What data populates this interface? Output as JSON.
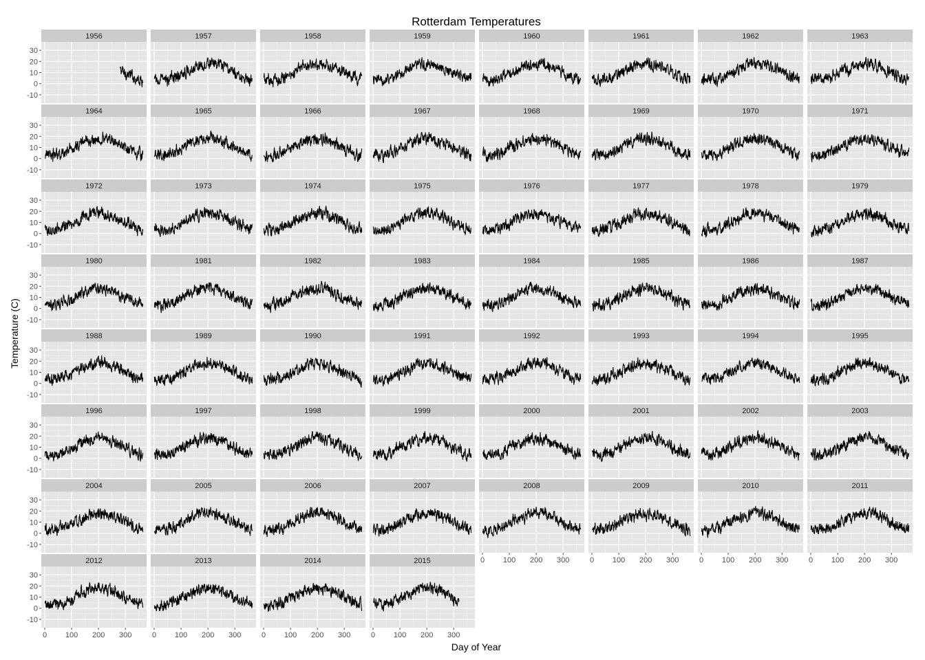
{
  "chart_data": {
    "type": "line",
    "layout": "faceted small multiples",
    "title": "Rotterdam Temperatures",
    "xlabel": "Day of Year",
    "ylabel": "Temperature (C)",
    "xlim": [
      0,
      366
    ],
    "ylim": [
      -15,
      35
    ],
    "x_ticks": [
      0,
      100,
      200,
      300
    ],
    "y_ticks": [
      -10,
      0,
      10,
      20,
      30
    ],
    "x_tick_labels": [
      "0",
      "100",
      "200",
      "300"
    ],
    "y_tick_labels": [
      "-10",
      "0",
      "10",
      "20",
      "30"
    ],
    "grid": true,
    "legend": "none",
    "colors": {
      "panel_bg": "#e5e5e5",
      "grid_major": "#ffffff",
      "grid_minor": "#f2f2f2",
      "strip_bg": "#cccccc",
      "line": "#000000"
    },
    "facets": [
      "1956",
      "1957",
      "1958",
      "1959",
      "1960",
      "1961",
      "1962",
      "1963",
      "1964",
      "1965",
      "1966",
      "1967",
      "1968",
      "1969",
      "1970",
      "1971",
      "1972",
      "1973",
      "1974",
      "1975",
      "1976",
      "1977",
      "1978",
      "1979",
      "1980",
      "1981",
      "1982",
      "1983",
      "1984",
      "1985",
      "1986",
      "1987",
      "1988",
      "1989",
      "1990",
      "1991",
      "1992",
      "1993",
      "1994",
      "1995",
      "1996",
      "1997",
      "1998",
      "1999",
      "2000",
      "2001",
      "2002",
      "2003",
      "2004",
      "2005",
      "2006",
      "2007",
      "2008",
      "2009",
      "2010",
      "2011",
      "2012",
      "2013",
      "2014",
      "2015"
    ],
    "series_summary": {
      "description": "Daily temperature per year; seasonal cycle from about 3 C in winter to about 18 C in summer with daily spread of roughly +/-8 C",
      "day_range": [
        1,
        365
      ],
      "first_year_start_day": 280,
      "last_year_end_day": 320
    }
  }
}
